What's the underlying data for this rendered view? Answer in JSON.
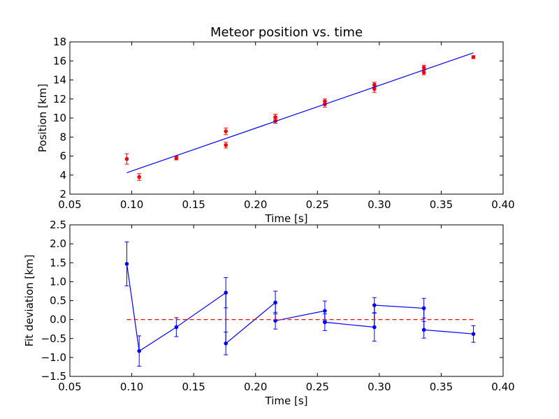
{
  "chart_data": [
    {
      "type": "scatter",
      "title": "Meteor position vs. time",
      "xlabel": "Time [s]",
      "ylabel": "Position [km]",
      "xlim": [
        0.05,
        0.4
      ],
      "ylim": [
        2,
        18
      ],
      "xticks": [
        "0.05",
        "0.10",
        "0.15",
        "0.20",
        "0.25",
        "0.30",
        "0.35",
        "0.40"
      ],
      "yticks": [
        "2",
        "4",
        "6",
        "8",
        "10",
        "12",
        "14",
        "16",
        "18"
      ],
      "grid": false,
      "series": [
        {
          "kind": "errorbar-points",
          "color": "#ff0000",
          "x": [
            0.096,
            0.106,
            0.136,
            0.176,
            0.176,
            0.216,
            0.216,
            0.256,
            0.256,
            0.296,
            0.296,
            0.336,
            0.336,
            0.376
          ],
          "y": [
            5.7,
            3.8,
            5.8,
            7.15,
            8.6,
            9.7,
            10.1,
            11.45,
            11.75,
            13.05,
            13.5,
            14.8,
            15.3,
            16.4
          ],
          "err": [
            0.55,
            0.35,
            0.2,
            0.3,
            0.35,
            0.25,
            0.3,
            0.3,
            0.25,
            0.35,
            0.25,
            0.25,
            0.25,
            0.15
          ]
        },
        {
          "kind": "fit-line",
          "color": "#0000ff",
          "x": [
            0.096,
            0.376
          ],
          "y": [
            4.25,
            16.85
          ]
        }
      ]
    },
    {
      "type": "line",
      "title": "",
      "xlabel": "Time [s]",
      "ylabel": "Fit deviation [km]",
      "xlim": [
        0.05,
        0.4
      ],
      "ylim": [
        -1.5,
        2.5
      ],
      "xticks": [
        "0.05",
        "0.10",
        "0.15",
        "0.20",
        "0.25",
        "0.30",
        "0.35",
        "0.40"
      ],
      "yticks": [
        "−1.5",
        "−1.0",
        "−0.5",
        "0.0",
        "0.5",
        "1.0",
        "1.5",
        "2.0",
        "2.5"
      ],
      "grid": false,
      "series": [
        {
          "kind": "errorbar-line",
          "color": "#0000ff",
          "x": [
            0.096,
            0.106,
            0.136,
            0.176,
            0.176,
            0.216,
            0.216,
            0.256,
            0.256,
            0.296,
            0.296,
            0.336,
            0.336,
            0.376
          ],
          "y": [
            1.47,
            -0.83,
            -0.2,
            0.71,
            -0.63,
            0.45,
            -0.03,
            0.23,
            -0.07,
            -0.2,
            0.38,
            0.3,
            -0.27,
            -0.38
          ],
          "err": [
            0.58,
            0.4,
            0.25,
            0.4,
            0.3,
            0.3,
            0.22,
            0.26,
            0.22,
            0.37,
            0.2,
            0.26,
            0.22,
            0.22
          ]
        },
        {
          "kind": "zero-reference",
          "color": "#ff0000",
          "dashed": true,
          "x": [
            0.096,
            0.376
          ],
          "y": [
            0,
            0
          ]
        }
      ]
    }
  ]
}
